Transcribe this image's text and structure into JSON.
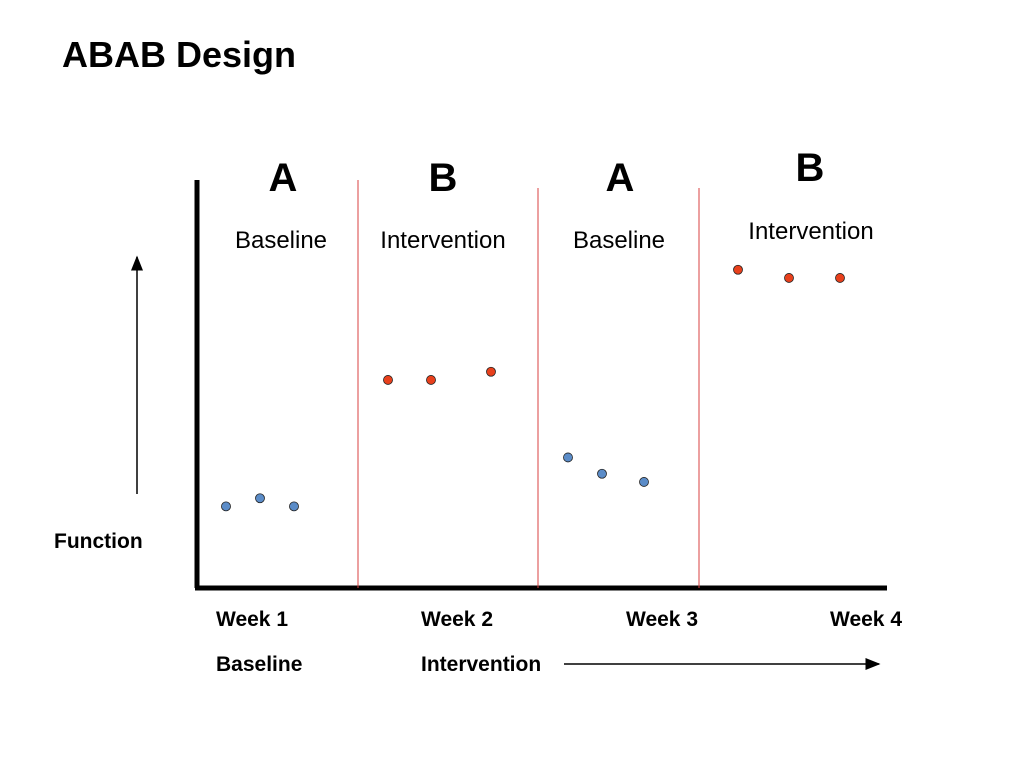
{
  "title": "ABAB Design",
  "y_axis_label": "Function",
  "colors": {
    "baseline_point": "#5b8cc8",
    "intervention_point": "#e8401c",
    "phase_divider": "#d94040",
    "axis": "#000000"
  },
  "phases": [
    {
      "letter": "A",
      "name": "Baseline"
    },
    {
      "letter": "B",
      "name": "Intervention"
    },
    {
      "letter": "A",
      "name": "Baseline"
    },
    {
      "letter": "B",
      "name": "Intervention"
    }
  ],
  "weeks": [
    "Week 1",
    "Week 2",
    "Week 3",
    "Week 4"
  ],
  "bottom_labels": {
    "baseline": "Baseline",
    "intervention": "Intervention"
  },
  "chart_data": {
    "type": "scatter",
    "title": "ABAB Design",
    "xlabel": "",
    "ylabel": "Function",
    "ylim": [
      0,
      10
    ],
    "grid": false,
    "series": [
      {
        "name": "Baseline",
        "phase": 1,
        "values": [
          2.0,
          2.2,
          2.0
        ]
      },
      {
        "name": "Intervention",
        "phase": 2,
        "values": [
          5.1,
          5.1,
          5.3
        ]
      },
      {
        "name": "Baseline",
        "phase": 3,
        "values": [
          3.2,
          2.8,
          2.6
        ]
      },
      {
        "name": "Intervention",
        "phase": 4,
        "values": [
          7.8,
          7.6,
          7.6
        ]
      }
    ]
  }
}
